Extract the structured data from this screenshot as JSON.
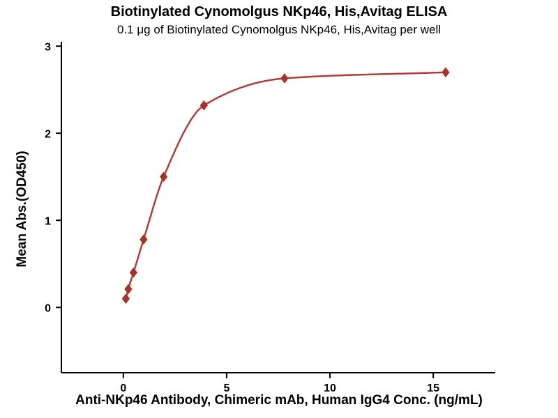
{
  "chart_data": {
    "type": "scatter",
    "title": "Biotinylated Cynomolgus NKp46, His,Avitag ELISA",
    "subtitle": "0.1 μg of Biotinylated Cynomolgus NKp46, His,Avitag per well",
    "xlabel": "Anti-NKp46 Antibody, Chimeric mAb, Human IgG4 Conc. (ng/mL)",
    "ylabel": "Mean Abs.(OD450)",
    "x": [
      0.12,
      0.24,
      0.49,
      0.98,
      1.95,
      3.9,
      7.8,
      15.6
    ],
    "y": [
      0.1,
      0.21,
      0.4,
      0.78,
      1.5,
      2.32,
      2.63,
      2.7
    ],
    "xlim": [
      -3,
      18
    ],
    "ylim": [
      -0.75,
      3.05
    ],
    "xticks": [
      0,
      5,
      10,
      15
    ],
    "yticks": [
      0,
      1,
      2,
      3
    ],
    "curve": "smooth fit through points",
    "marker": "diamond",
    "line_color": "#B23B38",
    "marker_color": "#A93226",
    "axis_color": "#000000",
    "grid": false,
    "legend": "none"
  }
}
